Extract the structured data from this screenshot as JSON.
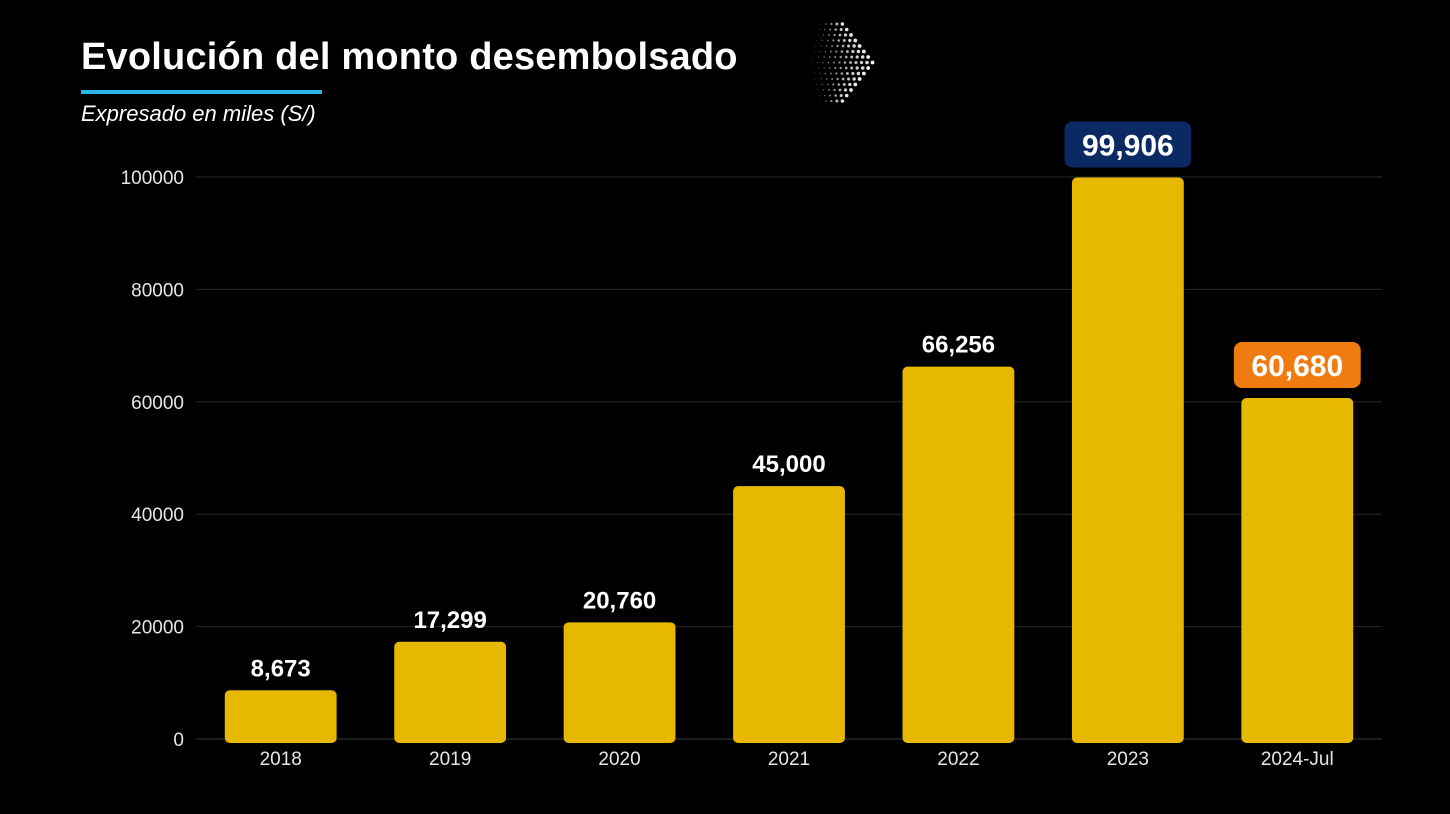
{
  "header": {
    "title": "Evolución del monto desembolsado",
    "subtitle": "Expresado en miles (S/)"
  },
  "colors": {
    "background": "#000000",
    "bar": "#e6b800",
    "title_underline": "#29b6e6",
    "highlight_max": "#0b2a63",
    "highlight_last": "#f07b10",
    "gridline": "#2a2a2a"
  },
  "icons": {
    "decoration": "chevron-right-dots-icon"
  },
  "chart_data": {
    "type": "bar",
    "title": "Evolución del monto desembolsado",
    "subtitle": "Expresado en miles (S/)",
    "categories": [
      "2018",
      "2019",
      "2020",
      "2021",
      "2022",
      "2023",
      "2024-Jul"
    ],
    "values": [
      8673,
      17299,
      20760,
      45000,
      66256,
      99906,
      60680
    ],
    "data_labels": [
      "8,673",
      "17,299",
      "20,760",
      "45,000",
      "66,256",
      "99,906",
      "60,680"
    ],
    "highlighted": {
      "5": "highlight_max",
      "6": "highlight_last"
    },
    "ylim": [
      0,
      100000
    ],
    "yticks": [
      0,
      20000,
      40000,
      60000,
      80000,
      100000
    ],
    "ytick_labels": [
      "0",
      "20000",
      "40000",
      "60000",
      "80000",
      "100000"
    ],
    "grid": true,
    "legend": "none"
  }
}
